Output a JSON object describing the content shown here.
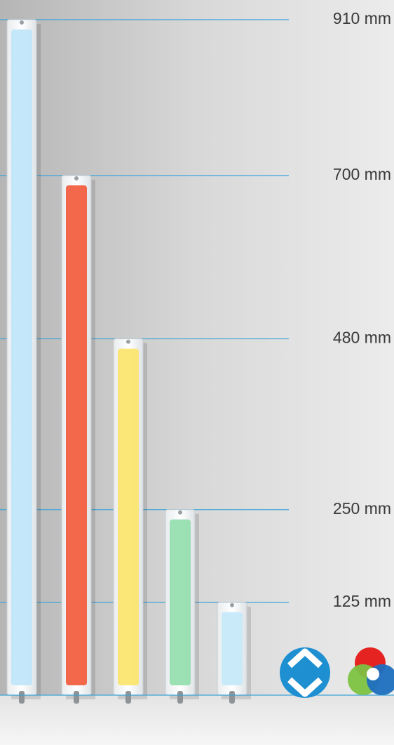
{
  "chart_data": {
    "type": "bar",
    "categories": [
      null,
      null,
      null,
      null,
      null
    ],
    "values": [
      910,
      700,
      480,
      250,
      125
    ],
    "colors": [
      "#bfe6f8",
      "#f25a3c",
      "#fbe46c",
      "#93deae",
      "#c4e9f9"
    ],
    "ylim": [
      0,
      910
    ],
    "yticks": [
      {
        "value": 910,
        "label": "910 mm"
      },
      {
        "value": 700,
        "label": "700 mm"
      },
      {
        "value": 480,
        "label": "480 mm"
      },
      {
        "value": 250,
        "label": "250 mm"
      },
      {
        "value": 125,
        "label": "125 mm"
      }
    ],
    "grid": true,
    "grid_color": "#3ea3d6"
  }
}
